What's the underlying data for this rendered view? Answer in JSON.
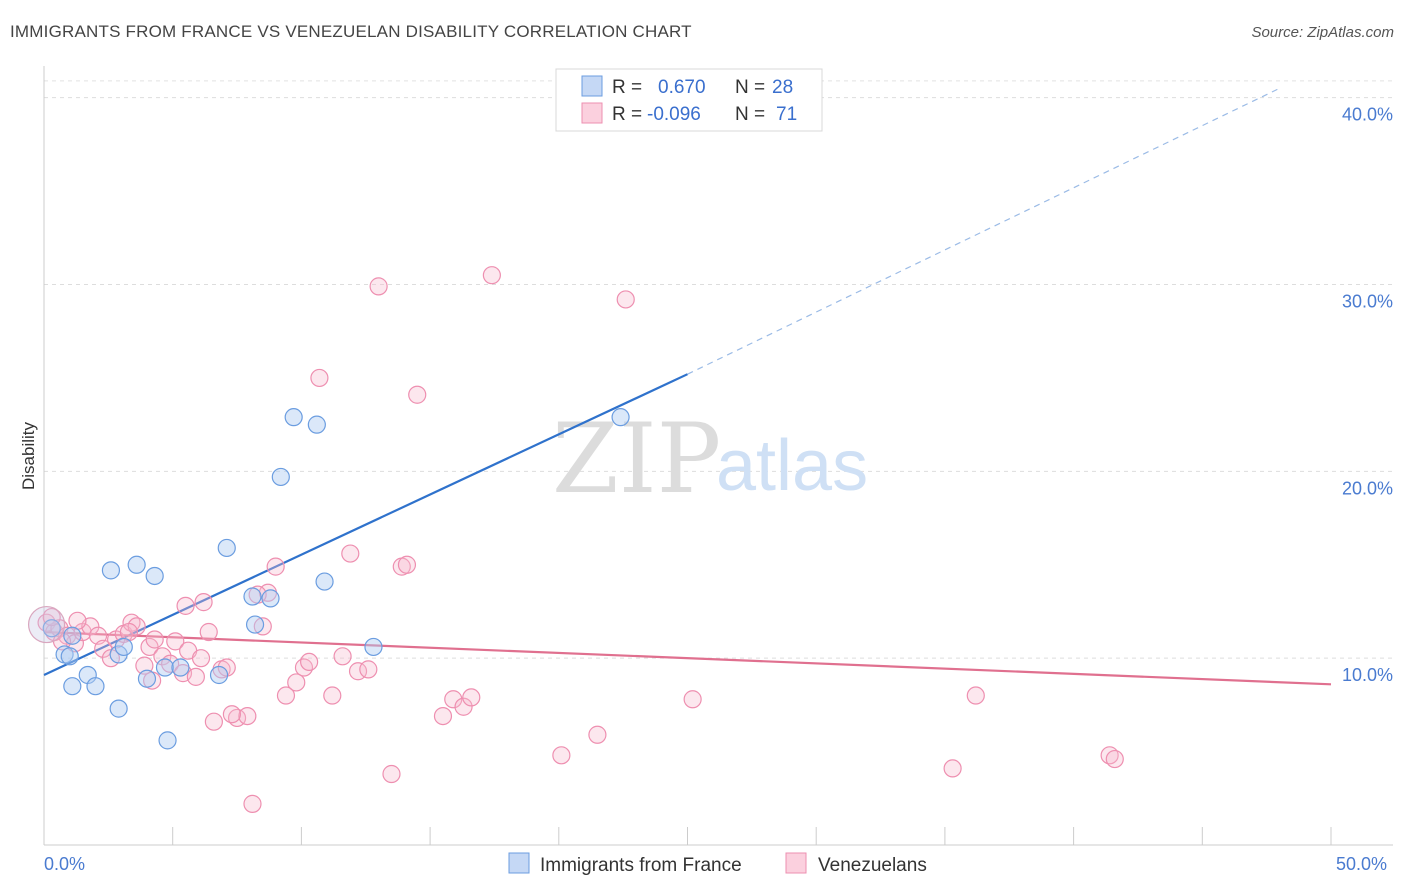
{
  "title": "IMMIGRANTS FROM FRANCE VS VENEZUELAN DISABILITY CORRELATION CHART",
  "source": "Source: ZipAtlas.com",
  "watermark": {
    "zip": "ZIP",
    "atlas": "atlas"
  },
  "chart_data": {
    "type": "scatter",
    "xlabel": "",
    "ylabel": "Disability",
    "xlim": [
      0,
      50
    ],
    "ylim": [
      0,
      40
    ],
    "x_tick_labels": [
      "0.0%",
      "50.0%"
    ],
    "y_ticks": [
      10,
      20,
      30,
      40
    ],
    "y_tick_labels": [
      "10.0%",
      "20.0%",
      "30.0%",
      "40.0%"
    ],
    "grid": true,
    "legend_position": "top-center",
    "colors": {
      "france": "#6b9de0",
      "venezuelans": "#ee8fb0",
      "france_line": "#2f72cc",
      "venezuelans_line": "#e0708f"
    },
    "legend": [
      {
        "r_label": "R =",
        "r_value": "0.670",
        "n_label": "N =",
        "n_value": "28"
      },
      {
        "r_label": "R =",
        "r_value": "-0.096",
        "n_label": "N =",
        "n_value": "71"
      }
    ],
    "series": [
      {
        "name": "Immigrants from France",
        "trend": {
          "x0": 0,
          "y0": 9.1,
          "x1": 25,
          "y1": 25.2,
          "dashed_to_x": 48,
          "dashed_to_y": 40.5
        },
        "points": [
          [
            0.3,
            11.6
          ],
          [
            0.8,
            10.2
          ],
          [
            1.1,
            11.2
          ],
          [
            1.0,
            10.1
          ],
          [
            1.1,
            8.5
          ],
          [
            1.7,
            9.1
          ],
          [
            2.0,
            8.5
          ],
          [
            2.9,
            10.2
          ],
          [
            3.1,
            10.6
          ],
          [
            2.6,
            14.7
          ],
          [
            2.9,
            7.3
          ],
          [
            3.6,
            15.0
          ],
          [
            4.0,
            8.9
          ],
          [
            4.3,
            14.4
          ],
          [
            4.7,
            9.5
          ],
          [
            4.8,
            5.6
          ],
          [
            5.3,
            9.5
          ],
          [
            6.8,
            9.1
          ],
          [
            7.1,
            15.9
          ],
          [
            8.1,
            13.3
          ],
          [
            8.2,
            11.8
          ],
          [
            8.8,
            13.2
          ],
          [
            9.2,
            19.7
          ],
          [
            9.7,
            22.9
          ],
          [
            10.6,
            22.5
          ],
          [
            10.9,
            14.1
          ],
          [
            12.8,
            10.6
          ],
          [
            22.4,
            22.9
          ]
        ]
      },
      {
        "name": "Venezuelans",
        "trend": {
          "x0": 0,
          "y0": 11.4,
          "x1": 50,
          "y1": 8.6
        },
        "points": [
          [
            0.1,
            11.9
          ],
          [
            0.4,
            11.4
          ],
          [
            0.6,
            11.6
          ],
          [
            0.9,
            11.2
          ],
          [
            1.2,
            10.8
          ],
          [
            1.5,
            11.4
          ],
          [
            1.8,
            11.7
          ],
          [
            2.1,
            11.2
          ],
          [
            2.3,
            10.5
          ],
          [
            2.6,
            10.0
          ],
          [
            2.8,
            11.0
          ],
          [
            3.1,
            11.3
          ],
          [
            3.4,
            11.9
          ],
          [
            3.6,
            11.7
          ],
          [
            3.9,
            9.6
          ],
          [
            4.1,
            10.6
          ],
          [
            4.3,
            11.0
          ],
          [
            4.6,
            10.1
          ],
          [
            4.9,
            9.7
          ],
          [
            5.1,
            10.9
          ],
          [
            5.4,
            9.2
          ],
          [
            5.6,
            10.4
          ],
          [
            5.9,
            9.0
          ],
          [
            6.1,
            10.0
          ],
          [
            6.4,
            11.4
          ],
          [
            6.6,
            6.6
          ],
          [
            6.9,
            9.4
          ],
          [
            7.1,
            9.5
          ],
          [
            7.5,
            6.8
          ],
          [
            7.9,
            6.9
          ],
          [
            8.1,
            2.2
          ],
          [
            8.5,
            11.7
          ],
          [
            8.7,
            13.5
          ],
          [
            9.0,
            14.9
          ],
          [
            9.4,
            8.0
          ],
          [
            10.1,
            9.5
          ],
          [
            10.3,
            9.8
          ],
          [
            10.7,
            25.0
          ],
          [
            11.2,
            8.0
          ],
          [
            11.6,
            10.1
          ],
          [
            11.9,
            15.6
          ],
          [
            12.2,
            9.3
          ],
          [
            12.6,
            9.4
          ],
          [
            13.0,
            29.9
          ],
          [
            13.5,
            3.8
          ],
          [
            13.9,
            14.9
          ],
          [
            14.1,
            15.0
          ],
          [
            14.5,
            24.1
          ],
          [
            15.5,
            6.9
          ],
          [
            15.9,
            7.8
          ],
          [
            16.3,
            7.4
          ],
          [
            16.6,
            7.9
          ],
          [
            17.4,
            30.5
          ],
          [
            20.1,
            4.8
          ],
          [
            21.5,
            5.9
          ],
          [
            22.6,
            29.2
          ],
          [
            25.2,
            7.8
          ],
          [
            35.3,
            4.1
          ],
          [
            36.2,
            8.0
          ],
          [
            41.4,
            4.8
          ],
          [
            41.6,
            4.6
          ],
          [
            0.3,
            12.2
          ],
          [
            0.7,
            10.9
          ],
          [
            1.3,
            12.0
          ],
          [
            5.5,
            12.8
          ],
          [
            6.2,
            13.0
          ],
          [
            3.3,
            11.4
          ],
          [
            8.3,
            13.4
          ],
          [
            9.8,
            8.7
          ],
          [
            4.2,
            8.8
          ],
          [
            7.3,
            7.0
          ]
        ]
      }
    ]
  },
  "bottom_legend": [
    {
      "label": "Immigrants from France"
    },
    {
      "label": "Venezuelans"
    }
  ]
}
